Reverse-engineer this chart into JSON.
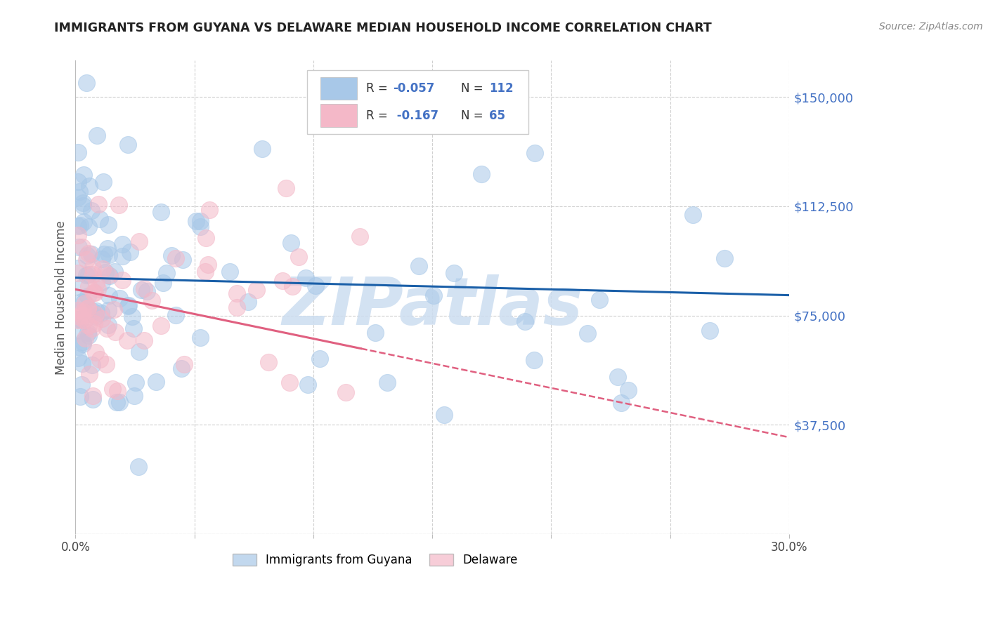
{
  "title": "IMMIGRANTS FROM GUYANA VS DELAWARE MEDIAN HOUSEHOLD INCOME CORRELATION CHART",
  "source": "Source: ZipAtlas.com",
  "ylabel": "Median Household Income",
  "xlim": [
    0.0,
    0.3
  ],
  "ylim": [
    0,
    162500
  ],
  "yticks": [
    0,
    37500,
    75000,
    112500,
    150000
  ],
  "ytick_labels": [
    "",
    "$37,500",
    "$75,000",
    "$112,500",
    "$150,000"
  ],
  "xticks": [
    0.0,
    0.05,
    0.1,
    0.15,
    0.2,
    0.25,
    0.3
  ],
  "xtick_labels": [
    "0.0%",
    "",
    "",
    "",
    "",
    "",
    "30.0%"
  ],
  "watermark": "ZIPatlas",
  "series1_label": "Immigrants from Guyana",
  "series2_label": "Delaware",
  "blue_color": "#a8c8e8",
  "pink_color": "#f4b8c8",
  "line_blue": "#1a5fa8",
  "line_pink": "#e06080",
  "legend_r_color": "#4472c4",
  "legend_n_color": "#4472c4",
  "tick_label_color": "#4472c4",
  "watermark_color": "#ccddf0",
  "grid_color": "#d0d0d0",
  "background_color": "#ffffff",
  "blue_seed": 42,
  "pink_seed": 7
}
